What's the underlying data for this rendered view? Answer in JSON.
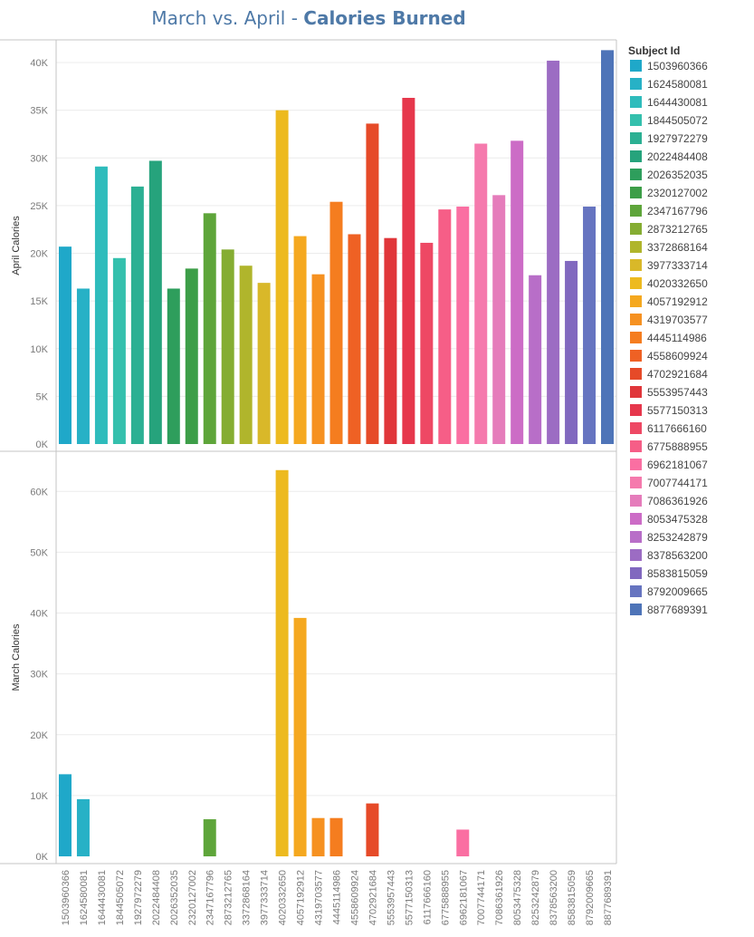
{
  "title": {
    "prefix": "March vs. April - ",
    "emphasis": "Calories Burned"
  },
  "legend": {
    "title": "Subject Id",
    "placement": "right"
  },
  "colors": {
    "title": "#4e79a7",
    "axis_text": "#7a7a7a",
    "grid": "#ececec",
    "frame": "#c4c4c4"
  },
  "chart_data": [
    {
      "type": "bar",
      "panel": "top",
      "ylabel": "April Calories",
      "ylim": [
        0,
        42000
      ],
      "yticks": [
        0,
        5000,
        10000,
        15000,
        20000,
        25000,
        30000,
        35000,
        40000
      ],
      "ytick_labels": [
        "0K",
        "5K",
        "10K",
        "15K",
        "20K",
        "25K",
        "30K",
        "35K",
        "40K"
      ],
      "categories": [
        "1503960366",
        "1624580081",
        "1644430081",
        "1844505072",
        "1927972279",
        "2022484408",
        "2026352035",
        "2320127002",
        "2347167796",
        "2873212765",
        "3372868164",
        "3977333714",
        "4020332650",
        "4057192912",
        "4319703577",
        "4445114986",
        "4558609924",
        "4702921684",
        "5553957443",
        "5577150313",
        "6117666160",
        "6775888955",
        "6962181067",
        "7007744171",
        "7086361926",
        "8053475328",
        "8253242879",
        "8378563200",
        "8583815059",
        "8792009665",
        "8877689391"
      ],
      "values": [
        20700,
        16300,
        29100,
        19500,
        27000,
        29700,
        16300,
        18400,
        24200,
        20400,
        18700,
        16900,
        35000,
        21800,
        17800,
        25400,
        22000,
        33600,
        21600,
        36300,
        21100,
        24600,
        24900,
        31500,
        26100,
        31800,
        17700,
        40200,
        19200,
        24900,
        41300
      ]
    },
    {
      "type": "bar",
      "panel": "bottom",
      "ylabel": "March Calories",
      "ylim": [
        0,
        66000
      ],
      "yticks": [
        0,
        10000,
        20000,
        30000,
        40000,
        50000,
        60000
      ],
      "ytick_labels": [
        "0K",
        "10K",
        "20K",
        "30K",
        "40K",
        "50K",
        "60K"
      ],
      "categories": [
        "1503960366",
        "1624580081",
        "1644430081",
        "1844505072",
        "1927972279",
        "2022484408",
        "2026352035",
        "2320127002",
        "2347167796",
        "2873212765",
        "3372868164",
        "3977333714",
        "4020332650",
        "4057192912",
        "4319703577",
        "4445114986",
        "4558609924",
        "4702921684",
        "5553957443",
        "5577150313",
        "6117666160",
        "6775888955",
        "6962181067",
        "7007744171",
        "7086361926",
        "8053475328",
        "8253242879",
        "8378563200",
        "8583815059",
        "8792009665",
        "8877689391"
      ],
      "values": [
        13500,
        9400,
        0,
        0,
        0,
        0,
        0,
        0,
        6100,
        0,
        0,
        0,
        63500,
        39200,
        6300,
        6300,
        0,
        8700,
        0,
        0,
        0,
        0,
        4400,
        0,
        0,
        0,
        0,
        0,
        0,
        0,
        0
      ]
    }
  ],
  "series_colors": [
    "#1fa8c9",
    "#27b1c6",
    "#2ebcbc",
    "#34c0ad",
    "#2bb093",
    "#26a37c",
    "#2e9e5c",
    "#3d9e48",
    "#5ea53a",
    "#85ad32",
    "#b0b52c",
    "#d9b829",
    "#edba1f",
    "#f5a81f",
    "#f69121",
    "#f57d1f",
    "#ef6124",
    "#e64a28",
    "#e0363a",
    "#e6374c",
    "#ee4864",
    "#f65e87",
    "#fa6fa2",
    "#f57aad",
    "#e57cbb",
    "#cc6cc6",
    "#b86ec8",
    "#9c6cc3",
    "#8168bf",
    "#6674c0",
    "#4e74b8"
  ]
}
